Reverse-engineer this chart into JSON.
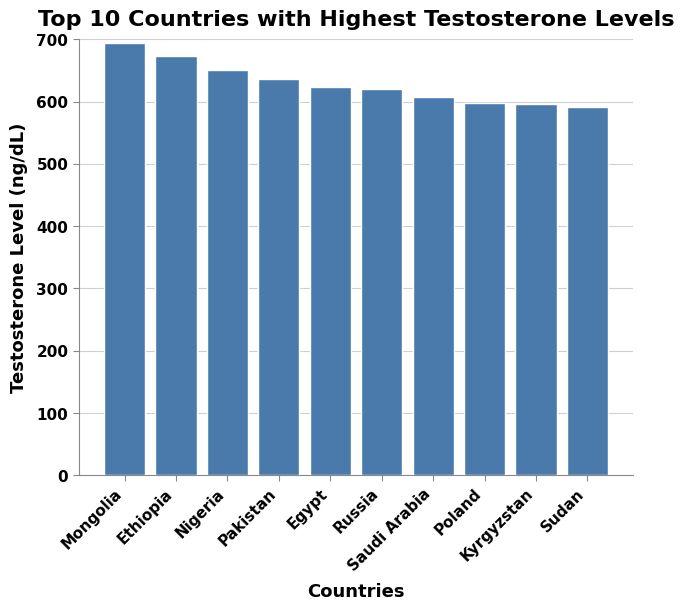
{
  "title": "Top 10 Countries with Highest Testosterone Levels",
  "xlabel": "Countries",
  "ylabel": "Testosterone Level (ng/dL)",
  "categories": [
    "Mongolia",
    "Ethiopia",
    "Nigeria",
    "Pakistan",
    "Egypt",
    "Russia",
    "Saudi Arabia",
    "Poland",
    "Kyrgyzstan",
    "Sudan"
  ],
  "values": [
    694,
    673,
    651,
    636,
    624,
    621,
    607,
    598,
    597,
    592
  ],
  "bar_color": "#4a7aab",
  "ylim": [
    0,
    700
  ],
  "yticks": [
    0,
    100,
    200,
    300,
    400,
    500,
    600,
    700
  ],
  "background_color": "#ffffff",
  "title_fontsize": 16,
  "label_fontsize": 13,
  "tick_fontsize": 11,
  "bar_width": 0.8,
  "rotation": 45
}
